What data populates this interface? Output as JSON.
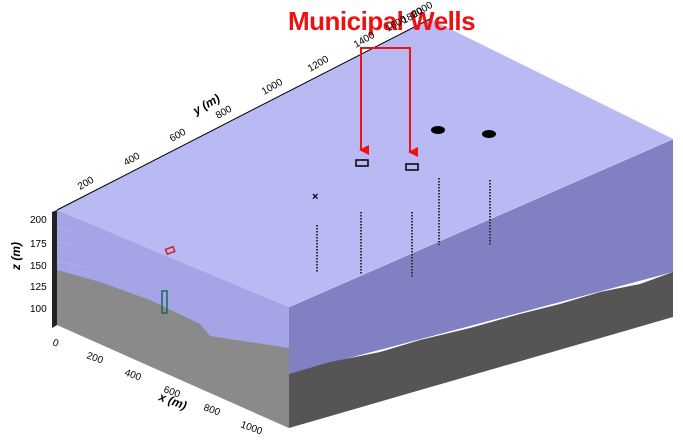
{
  "annotation": {
    "title": "Municipal Wells",
    "color": "#ee1111"
  },
  "axes": {
    "x": {
      "label": "x (m)",
      "ticks": [
        "0",
        "200",
        "400",
        "600",
        "800",
        "1000"
      ]
    },
    "y": {
      "label": "y (m)",
      "ticks": [
        "200",
        "400",
        "600",
        "800",
        "1000",
        "1200",
        "1400",
        "1600",
        "1800",
        "2000"
      ]
    },
    "z": {
      "label": "z (m)",
      "ticks": [
        "100",
        "125",
        "150",
        "175",
        "200"
      ]
    }
  },
  "colors": {
    "top_face": "#b9b9f4",
    "front_water": "#a4a4e6",
    "front_ground": "#8a8a8a",
    "right_water": "#8080c2",
    "right_ground": "#555555",
    "side_dark": "#222222"
  }
}
